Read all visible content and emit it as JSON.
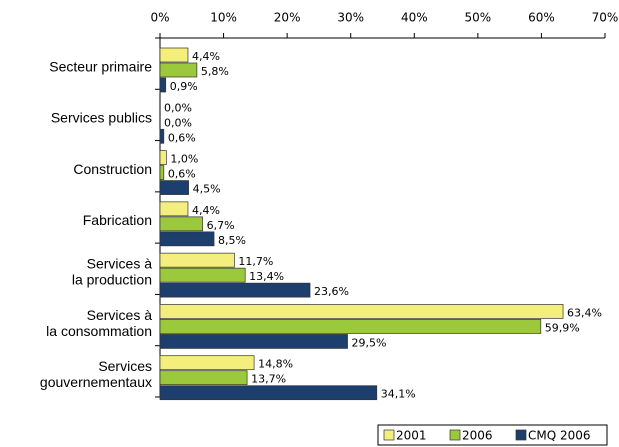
{
  "chart_data": {
    "type": "bar",
    "orientation": "horizontal",
    "categories": [
      [
        "Secteur primaire"
      ],
      [
        "Services publics"
      ],
      [
        "Construction"
      ],
      [
        "Fabrication"
      ],
      [
        "Services à",
        "la production"
      ],
      [
        "Services à",
        "la consommation"
      ],
      [
        "Services",
        "gouvernementaux"
      ]
    ],
    "series": [
      {
        "name": "2001",
        "color": "#f4ef7c",
        "values": [
          4.4,
          0.0,
          1.0,
          4.4,
          11.7,
          63.4,
          14.8
        ],
        "value_labels": [
          "4,4%",
          "0,0%",
          "1,0%",
          "4,4%",
          "11,7%",
          "63,4%",
          "14,8%"
        ]
      },
      {
        "name": "2006",
        "color": "#9cc83c",
        "values": [
          5.8,
          0.0,
          0.6,
          6.7,
          13.4,
          59.9,
          13.7
        ],
        "value_labels": [
          "5,8%",
          "0,0%",
          "0,6%",
          "6,7%",
          "13,4%",
          "59,9%",
          "13,7%"
        ]
      },
      {
        "name": "CMQ 2006",
        "color": "#1c3f6e",
        "values": [
          0.9,
          0.6,
          4.5,
          8.5,
          23.6,
          29.5,
          34.1
        ],
        "value_labels": [
          "0,9%",
          "0,6%",
          "4,5%",
          "8,5%",
          "23,6%",
          "29,5%",
          "34,1%"
        ]
      }
    ],
    "xlim": [
      0,
      70
    ],
    "xticks": [
      {
        "value": 0,
        "label": "0%"
      },
      {
        "value": 10,
        "label": "10%"
      },
      {
        "value": 20,
        "label": "20%"
      },
      {
        "value": 30,
        "label": "30%"
      },
      {
        "value": 40,
        "label": "40%"
      },
      {
        "value": 50,
        "label": "50%"
      },
      {
        "value": 60,
        "label": "60%"
      },
      {
        "value": 70,
        "label": "70%"
      }
    ],
    "legend": "bottom-right"
  }
}
